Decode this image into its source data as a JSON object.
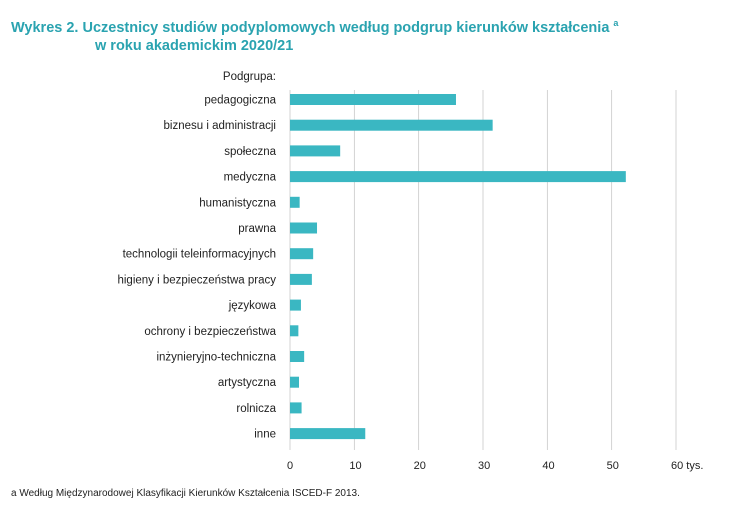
{
  "title": {
    "line1": "Wykres 2. Uczestnicy studiów podyplomowych według podgrup kierunków kształcenia",
    "marker": "a",
    "line2": "w roku akademickim 2020/21"
  },
  "footnote": {
    "marker": "a",
    "text": "Według Międzynarodowej Klasyfikacji Kierunków Kształcenia ISCED-F 2013."
  },
  "colors": {
    "bar": "#3ab7c2",
    "grid": "#c8c8c8",
    "title": "#2aa3b0"
  },
  "chart_data": {
    "type": "bar",
    "orientation": "horizontal",
    "ylabel": "Podgrupa:",
    "categories": [
      "pedagogiczna",
      "biznesu i administracji",
      "społeczna",
      "medyczna",
      "humanistyczna",
      "prawna",
      "technologii teleinformacyjnych",
      "higieny i bezpieczeństwa pracy",
      "językowa",
      "ochrony i bezpieczeństwa",
      "inżynieryjno-techniczna",
      "artystyczna",
      "rolnicza",
      "inne"
    ],
    "values": [
      25.8,
      31.5,
      7.8,
      52.2,
      1.5,
      4.2,
      3.6,
      3.4,
      1.7,
      1.3,
      2.2,
      1.4,
      1.8,
      11.7
    ],
    "xlim": [
      0,
      60
    ],
    "xticks": [
      "0",
      "10",
      "20",
      "30",
      "40",
      "50",
      "60 tys."
    ],
    "grid": true
  }
}
